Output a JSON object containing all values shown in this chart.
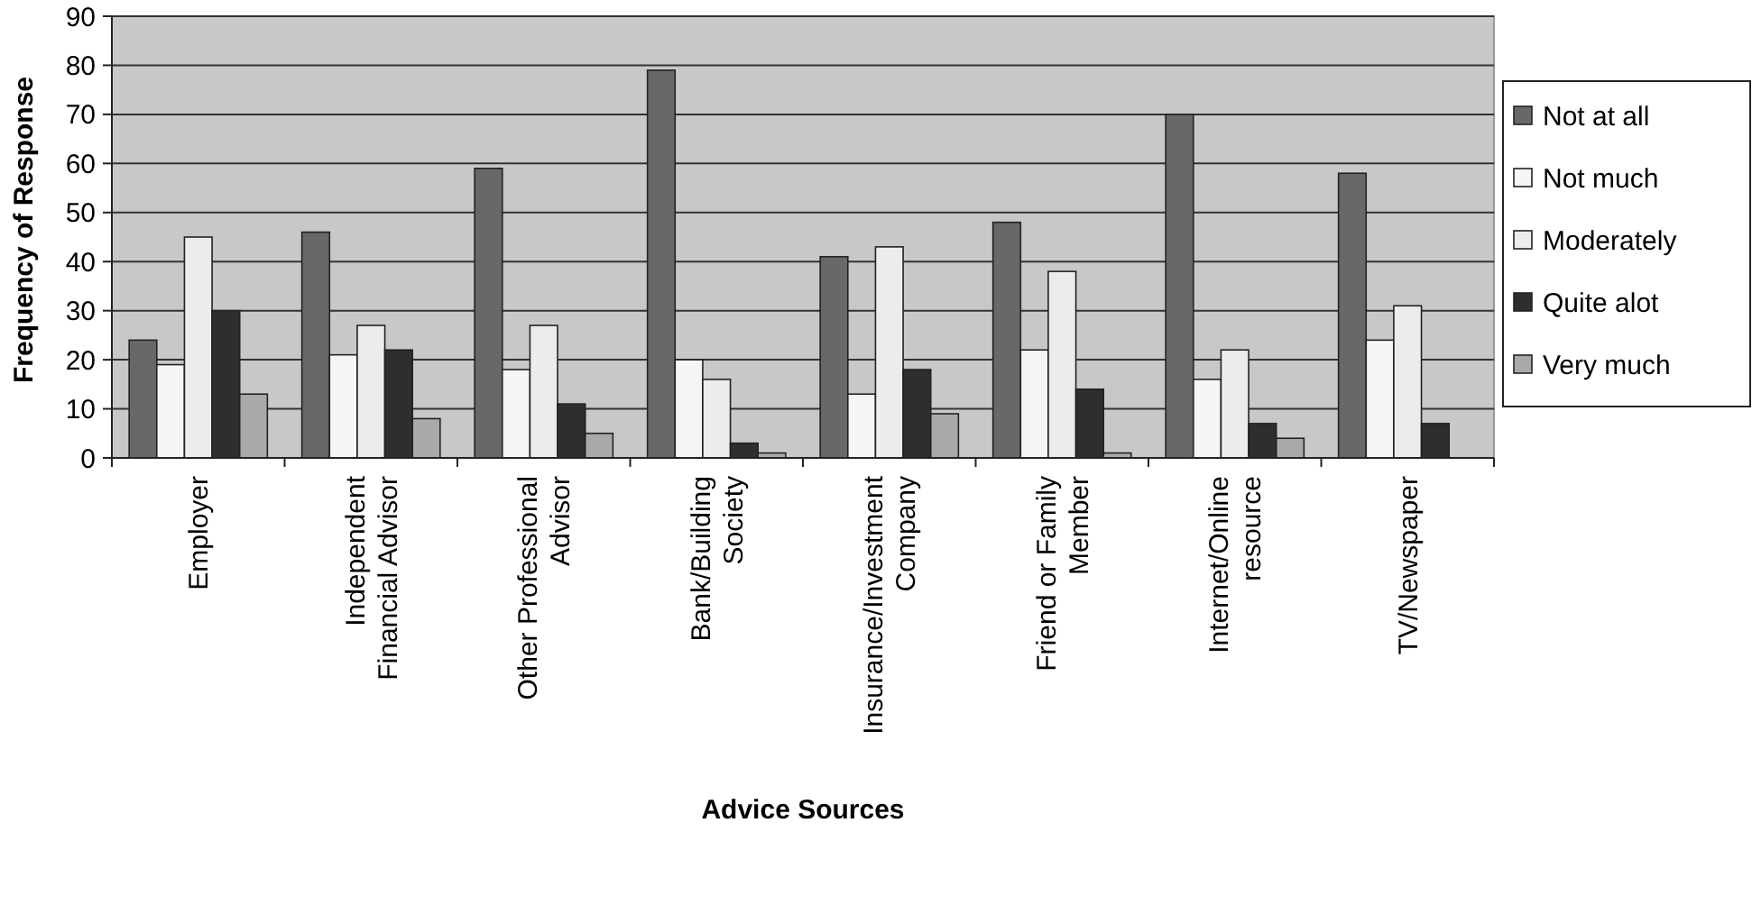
{
  "chart_data": {
    "type": "bar",
    "xlabel": "Advice Sources",
    "ylabel": "Frequency of Response",
    "categories": [
      "Employer",
      "Independent Financial Advisor",
      "Other Professional Advisor",
      "Bank/Building Society",
      "Insurance/Investment Company",
      "Friend or Family Member",
      "Internet/Online resource",
      "TV/Newspaper"
    ],
    "series": [
      {
        "name": "Not at all",
        "color": "#686868",
        "values": [
          24,
          46,
          59,
          79,
          41,
          48,
          70,
          58
        ]
      },
      {
        "name": "Not much",
        "color": "#f5f5f5",
        "values": [
          19,
          21,
          18,
          20,
          13,
          22,
          16,
          24
        ]
      },
      {
        "name": "Moderately",
        "color": "#ebeceb",
        "values": [
          45,
          27,
          27,
          16,
          43,
          38,
          22,
          31
        ]
      },
      {
        "name": "Quite alot",
        "color": "#2f2d2f",
        "values": [
          30,
          22,
          11,
          3,
          18,
          14,
          7,
          7
        ]
      },
      {
        "name": "Very much",
        "color": "#a8a9ab",
        "values": [
          13,
          8,
          5,
          1,
          9,
          1,
          4,
          0
        ]
      }
    ],
    "ylim": [
      0,
      90
    ],
    "yticks": [
      0,
      10,
      20,
      30,
      40,
      50,
      60,
      70,
      80,
      90
    ],
    "grid": "y",
    "legend": "right"
  }
}
